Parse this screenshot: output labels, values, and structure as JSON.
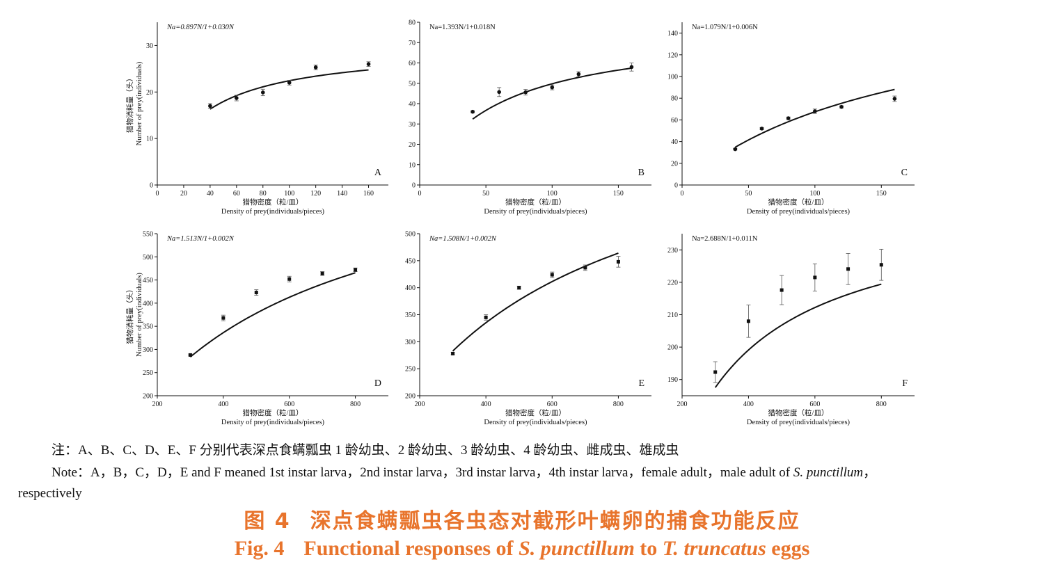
{
  "chart_data": [
    {
      "type": "scatter",
      "label": "A",
      "equation": "Na=0.897N/1+0.030N",
      "ylabel_cn": "猎物消耗量（头）",
      "ylabel_en": "Number of prey(individuals)",
      "xlabel_cn": "猎物密度（粒/皿）",
      "xlabel_en": "Density of prey(individuals/pieces)",
      "xlim": [
        0,
        175
      ],
      "ylim": [
        0,
        35
      ],
      "xticks": [
        0,
        20,
        40,
        60,
        80,
        100,
        120,
        140,
        160
      ],
      "yticks": [
        0,
        10,
        20,
        30
      ],
      "marker": "circle",
      "points": [
        {
          "x": 40,
          "y": 17.0,
          "err": 0.5
        },
        {
          "x": 60,
          "y": 18.7,
          "err": 0.6
        },
        {
          "x": 80,
          "y": 19.9,
          "err": 0.7
        },
        {
          "x": 100,
          "y": 22.0,
          "err": 0.5
        },
        {
          "x": 120,
          "y": 25.3,
          "err": 0.5
        },
        {
          "x": 160,
          "y": 26.0,
          "err": 0.5
        }
      ],
      "fit": {
        "a": 0.897,
        "b": 0.03,
        "xmin": 40,
        "xmax": 160
      }
    },
    {
      "type": "scatter",
      "label": "B",
      "equation": "Na=1.393N/1+0.018N",
      "ylabel_cn": "",
      "ylabel_en": "",
      "xlabel_cn": "猎物密度（粒/皿）",
      "xlabel_en": "Density of prey(individuals/pieces)",
      "xlim": [
        0,
        175
      ],
      "ylim": [
        0,
        80
      ],
      "xticks": [
        0,
        50,
        100,
        150
      ],
      "yticks": [
        0,
        10,
        20,
        30,
        40,
        50,
        60,
        70,
        80
      ],
      "marker": "circle",
      "points": [
        {
          "x": 40,
          "y": 36.0,
          "err": 0.5
        },
        {
          "x": 60,
          "y": 45.7,
          "err": 2.2
        },
        {
          "x": 80,
          "y": 45.6,
          "err": 1.4
        },
        {
          "x": 100,
          "y": 48.0,
          "err": 1.2
        },
        {
          "x": 120,
          "y": 54.5,
          "err": 1.2
        },
        {
          "x": 160,
          "y": 58.0,
          "err": 2.0
        }
      ],
      "fit": {
        "a": 1.393,
        "b": 0.018,
        "xmin": 40,
        "xmax": 160
      }
    },
    {
      "type": "scatter",
      "label": "C",
      "equation": "Na=1.079N/1+0.006N",
      "ylabel_cn": "",
      "ylabel_en": "",
      "xlabel_cn": "猎物密度（粒/皿）",
      "xlabel_en": "Density of prey(individuals/pieces)",
      "xlim": [
        0,
        175
      ],
      "ylim": [
        0,
        150
      ],
      "xticks": [
        0,
        50,
        100,
        150
      ],
      "yticks": [
        0,
        20,
        40,
        60,
        80,
        100,
        120,
        140
      ],
      "marker": "circle",
      "points": [
        {
          "x": 40,
          "y": 33.0,
          "err": 0.8
        },
        {
          "x": 60,
          "y": 52.0,
          "err": 1.0
        },
        {
          "x": 80,
          "y": 61.5,
          "err": 1.2
        },
        {
          "x": 100,
          "y": 68.0,
          "err": 2.0
        },
        {
          "x": 120,
          "y": 72.0,
          "err": 1.0
        },
        {
          "x": 160,
          "y": 79.5,
          "err": 2.5
        }
      ],
      "fit": {
        "a": 1.079,
        "b": 0.006,
        "xmin": 40,
        "xmax": 160
      }
    },
    {
      "type": "scatter",
      "label": "D",
      "equation": "Na=1.513N/1+0.002N",
      "ylabel_cn": "猎物消耗量（头）",
      "ylabel_en": "Number of prey(individuals)",
      "xlabel_cn": "猎物密度（粒/皿）",
      "xlabel_en": "Density of prey(individuals/pieces)",
      "xlim": [
        200,
        900
      ],
      "ylim": [
        200,
        550
      ],
      "xticks": [
        200,
        400,
        600,
        800
      ],
      "yticks": [
        200,
        250,
        300,
        350,
        400,
        450,
        500,
        550
      ],
      "marker": "square",
      "points": [
        {
          "x": 300,
          "y": 288,
          "err": 2
        },
        {
          "x": 400,
          "y": 368,
          "err": 6
        },
        {
          "x": 500,
          "y": 423,
          "err": 6
        },
        {
          "x": 600,
          "y": 452,
          "err": 6
        },
        {
          "x": 700,
          "y": 464,
          "err": 4
        },
        {
          "x": 800,
          "y": 472,
          "err": 4
        }
      ],
      "fit": {
        "a": 1.513,
        "b": 0.002,
        "xmin": 300,
        "xmax": 800
      }
    },
    {
      "type": "scatter",
      "label": "E",
      "equation": "Na=1.508N/1+0.002N",
      "ylabel_cn": "",
      "ylabel_en": "",
      "xlabel_cn": "猎物密度（粒/皿）",
      "xlabel_en": "Density of prey(individuals/pieces)",
      "xlim": [
        200,
        900
      ],
      "ylim": [
        200,
        500
      ],
      "xticks": [
        200,
        400,
        600,
        800
      ],
      "yticks": [
        200,
        250,
        300,
        350,
        400,
        450,
        500
      ],
      "marker": "square",
      "points": [
        {
          "x": 300,
          "y": 278,
          "err": 2
        },
        {
          "x": 400,
          "y": 345,
          "err": 5
        },
        {
          "x": 500,
          "y": 400,
          "err": 3
        },
        {
          "x": 600,
          "y": 424,
          "err": 5
        },
        {
          "x": 700,
          "y": 437,
          "err": 5
        },
        {
          "x": 800,
          "y": 448,
          "err": 10
        }
      ],
      "fit": {
        "a": 1.508,
        "b": 0.002,
        "xmin": 300,
        "xmax": 800
      }
    },
    {
      "type": "scatter",
      "label": "F",
      "equation": "Na=2.688N/1+0.011N",
      "ylabel_cn": "",
      "ylabel_en": "",
      "xlabel_cn": "猎物密度（粒/皿）",
      "xlabel_en": "Density of prey(individuals/pieces)",
      "xlim": [
        200,
        900
      ],
      "ylim": [
        185,
        235
      ],
      "xticks": [
        200,
        400,
        600,
        800
      ],
      "yticks": [
        190,
        200,
        210,
        220,
        230
      ],
      "marker": "square",
      "points": [
        {
          "x": 300,
          "y": 192.3,
          "err": 3.2
        },
        {
          "x": 400,
          "y": 208.0,
          "err": 5.0
        },
        {
          "x": 500,
          "y": 217.6,
          "err": 4.5
        },
        {
          "x": 600,
          "y": 221.5,
          "err": 4.2
        },
        {
          "x": 700,
          "y": 224.1,
          "err": 4.8
        },
        {
          "x": 800,
          "y": 225.4,
          "err": 4.8
        }
      ],
      "fit": {
        "a": 2.688,
        "b": 0.011,
        "xmin": 300,
        "xmax": 800
      }
    }
  ],
  "notes": {
    "note_cn": "注：A、B、C、D、E、F 分别代表深点食螨瓢虫 1 龄幼虫、2 龄幼虫、3 龄幼虫、4 龄幼虫、雌成虫、雄成虫",
    "note_en_prefix": "Note：A，B，C，D，E and F meaned 1st instar larva，2nd instar larva，3rd instar larva，4th instar larva，female adult，male adult of ",
    "note_en_species": "S. punctillum",
    "note_en_suffix": "，",
    "note_en_line2": "respectively"
  },
  "caption": {
    "cn_number": "图 4",
    "cn_text": "深点食螨瓢虫各虫态对截形叶螨卵的捕食功能反应",
    "en_number": "Fig. 4",
    "en_text1": "Functional responses of ",
    "en_species1": "S. punctillum",
    "en_text2": " to ",
    "en_species2": "T. truncatus",
    "en_text3": " eggs"
  },
  "colors": {
    "caption": "#e8742c",
    "ink": "#111111"
  }
}
